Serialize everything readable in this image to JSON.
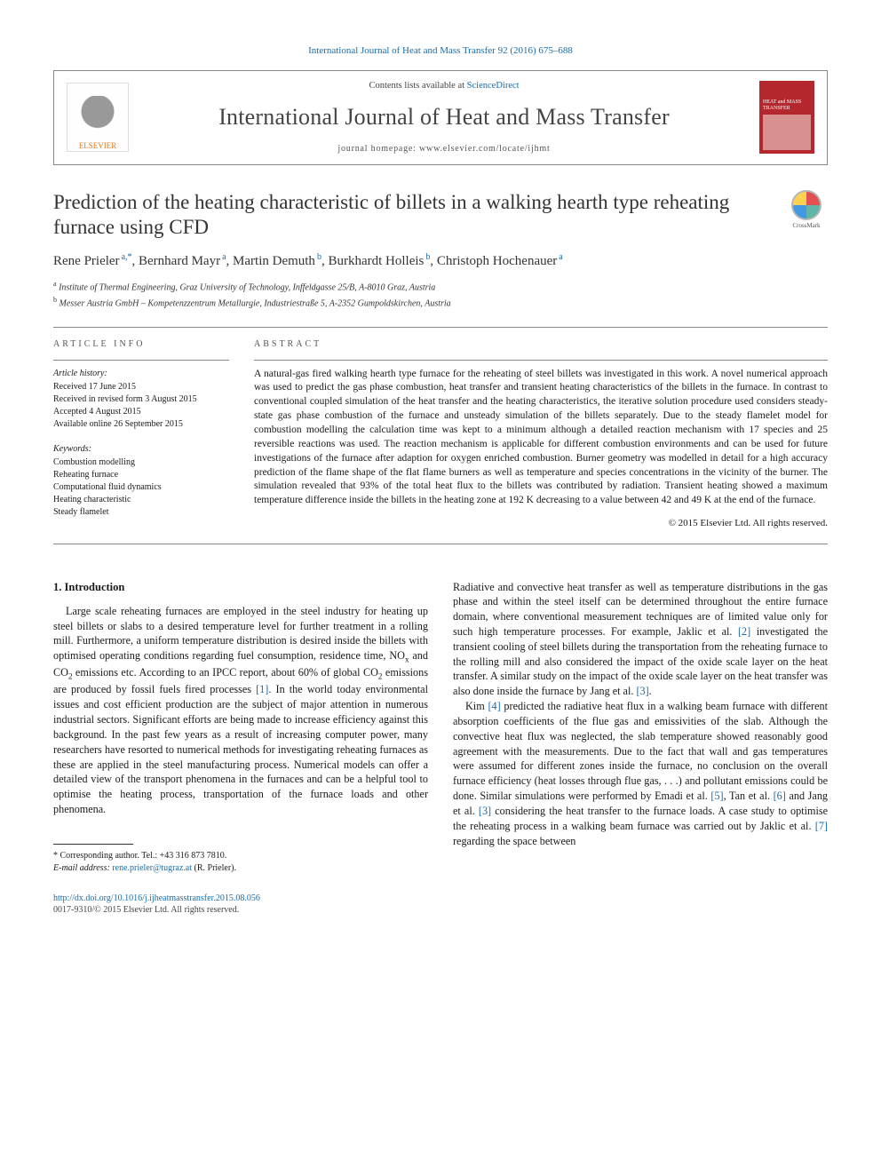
{
  "journal_ref": "International Journal of Heat and Mass Transfer 92 (2016) 675–688",
  "header": {
    "elsevier": "ELSEVIER",
    "contents_prefix": "Contents lists available at ",
    "contents_link": "ScienceDirect",
    "journal_name": "International Journal of Heat and Mass Transfer",
    "homepage_prefix": "journal homepage: ",
    "homepage": "www.elsevier.com/locate/ijhmt",
    "cover_text": "HEAT and MASS TRANSFER"
  },
  "crossmark": "CrossMark",
  "title": "Prediction of the heating characteristic of billets in a walking hearth type reheating furnace using CFD",
  "authors_html": "Rene Prieler|a,*|, Bernhard Mayr|a|, Martin Demuth|b|, Burkhardt Holleis|b|, Christoph Hochenauer|a|",
  "authors": [
    {
      "name": "Rene Prieler",
      "sup": "a,*"
    },
    {
      "name": "Bernhard Mayr",
      "sup": "a"
    },
    {
      "name": "Martin Demuth",
      "sup": "b"
    },
    {
      "name": "Burkhardt Holleis",
      "sup": "b"
    },
    {
      "name": "Christoph Hochenauer",
      "sup": "a"
    }
  ],
  "affiliations": [
    {
      "sup": "a",
      "text": "Institute of Thermal Engineering, Graz University of Technology, Inffeldgasse 25/B, A-8010 Graz, Austria"
    },
    {
      "sup": "b",
      "text": "Messer Austria GmbH – Kompetenzzentrum Metallurgie, Industriestraße 5, A-2352 Gumpoldskirchen, Austria"
    }
  ],
  "info": {
    "head": "ARTICLE INFO",
    "history_head": "Article history:",
    "history": [
      "Received 17 June 2015",
      "Received in revised form 3 August 2015",
      "Accepted 4 August 2015",
      "Available online 26 September 2015"
    ],
    "keywords_head": "Keywords:",
    "keywords": [
      "Combustion modelling",
      "Reheating furnace",
      "Computational fluid dynamics",
      "Heating characteristic",
      "Steady flamelet"
    ]
  },
  "abstract": {
    "head": "ABSTRACT",
    "text": "A natural-gas fired walking hearth type furnace for the reheating of steel billets was investigated in this work. A novel numerical approach was used to predict the gas phase combustion, heat transfer and transient heating characteristics of the billets in the furnace. In contrast to conventional coupled simulation of the heat transfer and the heating characteristics, the iterative solution procedure used considers steady-state gas phase combustion of the furnace and unsteady simulation of the billets separately. Due to the steady flamelet model for combustion modelling the calculation time was kept to a minimum although a detailed reaction mechanism with 17 species and 25 reversible reactions was used. The reaction mechanism is applicable for different combustion environments and can be used for future investigations of the furnace after adaption for oxygen enriched combustion. Burner geometry was modelled in detail for a high accuracy prediction of the flame shape of the flat flame burners as well as temperature and species concentrations in the vicinity of the burner. The simulation revealed that 93% of the total heat flux to the billets was contributed by radiation. Transient heating showed a maximum temperature difference inside the billets in the heating zone at 192 K decreasing to a value between 42 and 49 K at the end of the furnace.",
    "copyright": "© 2015 Elsevier Ltd. All rights reserved."
  },
  "body": {
    "sec_head": "1. Introduction",
    "col1": "Large scale reheating furnaces are employed in the steel industry for heating up steel billets or slabs to a desired temperature level for further treatment in a rolling mill. Furthermore, a uniform temperature distribution is desired inside the billets with optimised operating conditions regarding fuel consumption, residence time, NOₓ and CO₂ emissions etc. According to an IPCC report, about 60% of global CO₂ emissions are produced by fossil fuels fired processes [1]. In the world today environmental issues and cost efficient production are the subject of major attention in numerous industrial sectors. Significant efforts are being made to increase efficiency against this background. In the past few years as a result of increasing computer power, many researchers have resorted to numerical methods for investigating reheating furnaces as these are applied in the steel manufacturing process. Numerical models can offer a detailed view of the transport phenomena in the furnaces and can be a helpful tool to optimise the heating process, transportation of the furnace loads and other phenomena.",
    "col2a": "Radiative and convective heat transfer as well as temperature distributions in the gas phase and within the steel itself can be determined throughout the entire furnace domain, where conventional measurement techniques are of limited value only for such high temperature processes. For example, Jaklic et al. [2] investigated the transient cooling of steel billets during the transportation from the reheating furnace to the rolling mill and also considered the impact of the oxide scale layer on the heat transfer. A similar study on the impact of the oxide scale layer on the heat transfer was also done inside the furnace by Jang et al. [3].",
    "col2b": "Kim [4] predicted the radiative heat flux in a walking beam furnace with different absorption coefficients of the flue gas and emissivities of the slab. Although the convective heat flux was neglected, the slab temperature showed reasonably good agreement with the measurements. Due to the fact that wall and gas temperatures were assumed for different zones inside the furnace, no conclusion on the overall furnace efficiency (heat losses through flue gas, . . .) and pollutant emissions could be done. Similar simulations were performed by Emadi et al. [5], Tan et al. [6] and Jang et al. [3] considering the heat transfer to the furnace loads. A case study to optimise the reheating process in a walking beam furnace was carried out by Jaklic et al. [7] regarding the space between"
  },
  "footnotes": {
    "corr": "* Corresponding author. Tel.: +43 316 873 7810.",
    "email_label": "E-mail address:",
    "email": "rene.prieler@tugraz.at",
    "email_who": "(R. Prieler)."
  },
  "footer": {
    "doi": "http://dx.doi.org/10.1016/j.ijheatmasstransfer.2015.08.056",
    "issn": "0017-9310/© 2015 Elsevier Ltd. All rights reserved."
  },
  "colors": {
    "link": "#1a6ba8",
    "elsevier": "#e67817",
    "cover": "#b3272d"
  }
}
